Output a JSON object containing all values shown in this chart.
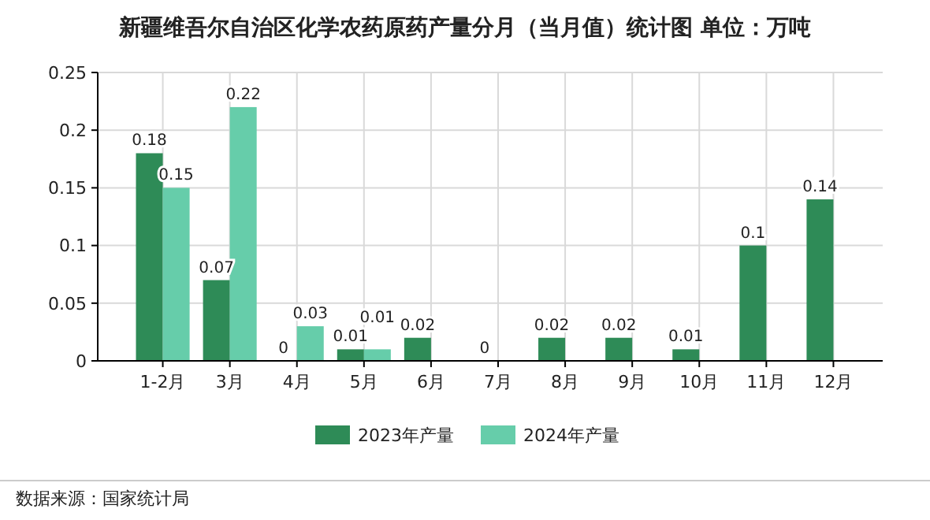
{
  "chart_data": {
    "type": "bar",
    "title": "新疆维吾尔自治区化学农药原药产量分月（当月值）统计图  单位：万吨",
    "categories": [
      "1-2月",
      "3月",
      "4月",
      "5月",
      "6月",
      "7月",
      "8月",
      "9月",
      "10月",
      "11月",
      "12月"
    ],
    "series": [
      {
        "name": "2023年产量",
        "color": "#2e8b57",
        "values": [
          0.18,
          0.07,
          0,
          0.01,
          0.02,
          0,
          0.02,
          0.02,
          0.01,
          0.1,
          0.14
        ]
      },
      {
        "name": "2024年产量",
        "color": "#66cdaa",
        "values": [
          0.15,
          0.22,
          0.03,
          0.01,
          null,
          null,
          null,
          null,
          null,
          null,
          null
        ]
      }
    ],
    "ylim": [
      0,
      0.25
    ],
    "yticks": [
      0,
      0.05,
      0.1,
      0.15,
      0.2,
      0.25
    ],
    "grid": true,
    "legend": "bottom",
    "data_labels": true,
    "annotations": [
      "数据来源：国家统计局"
    ]
  }
}
